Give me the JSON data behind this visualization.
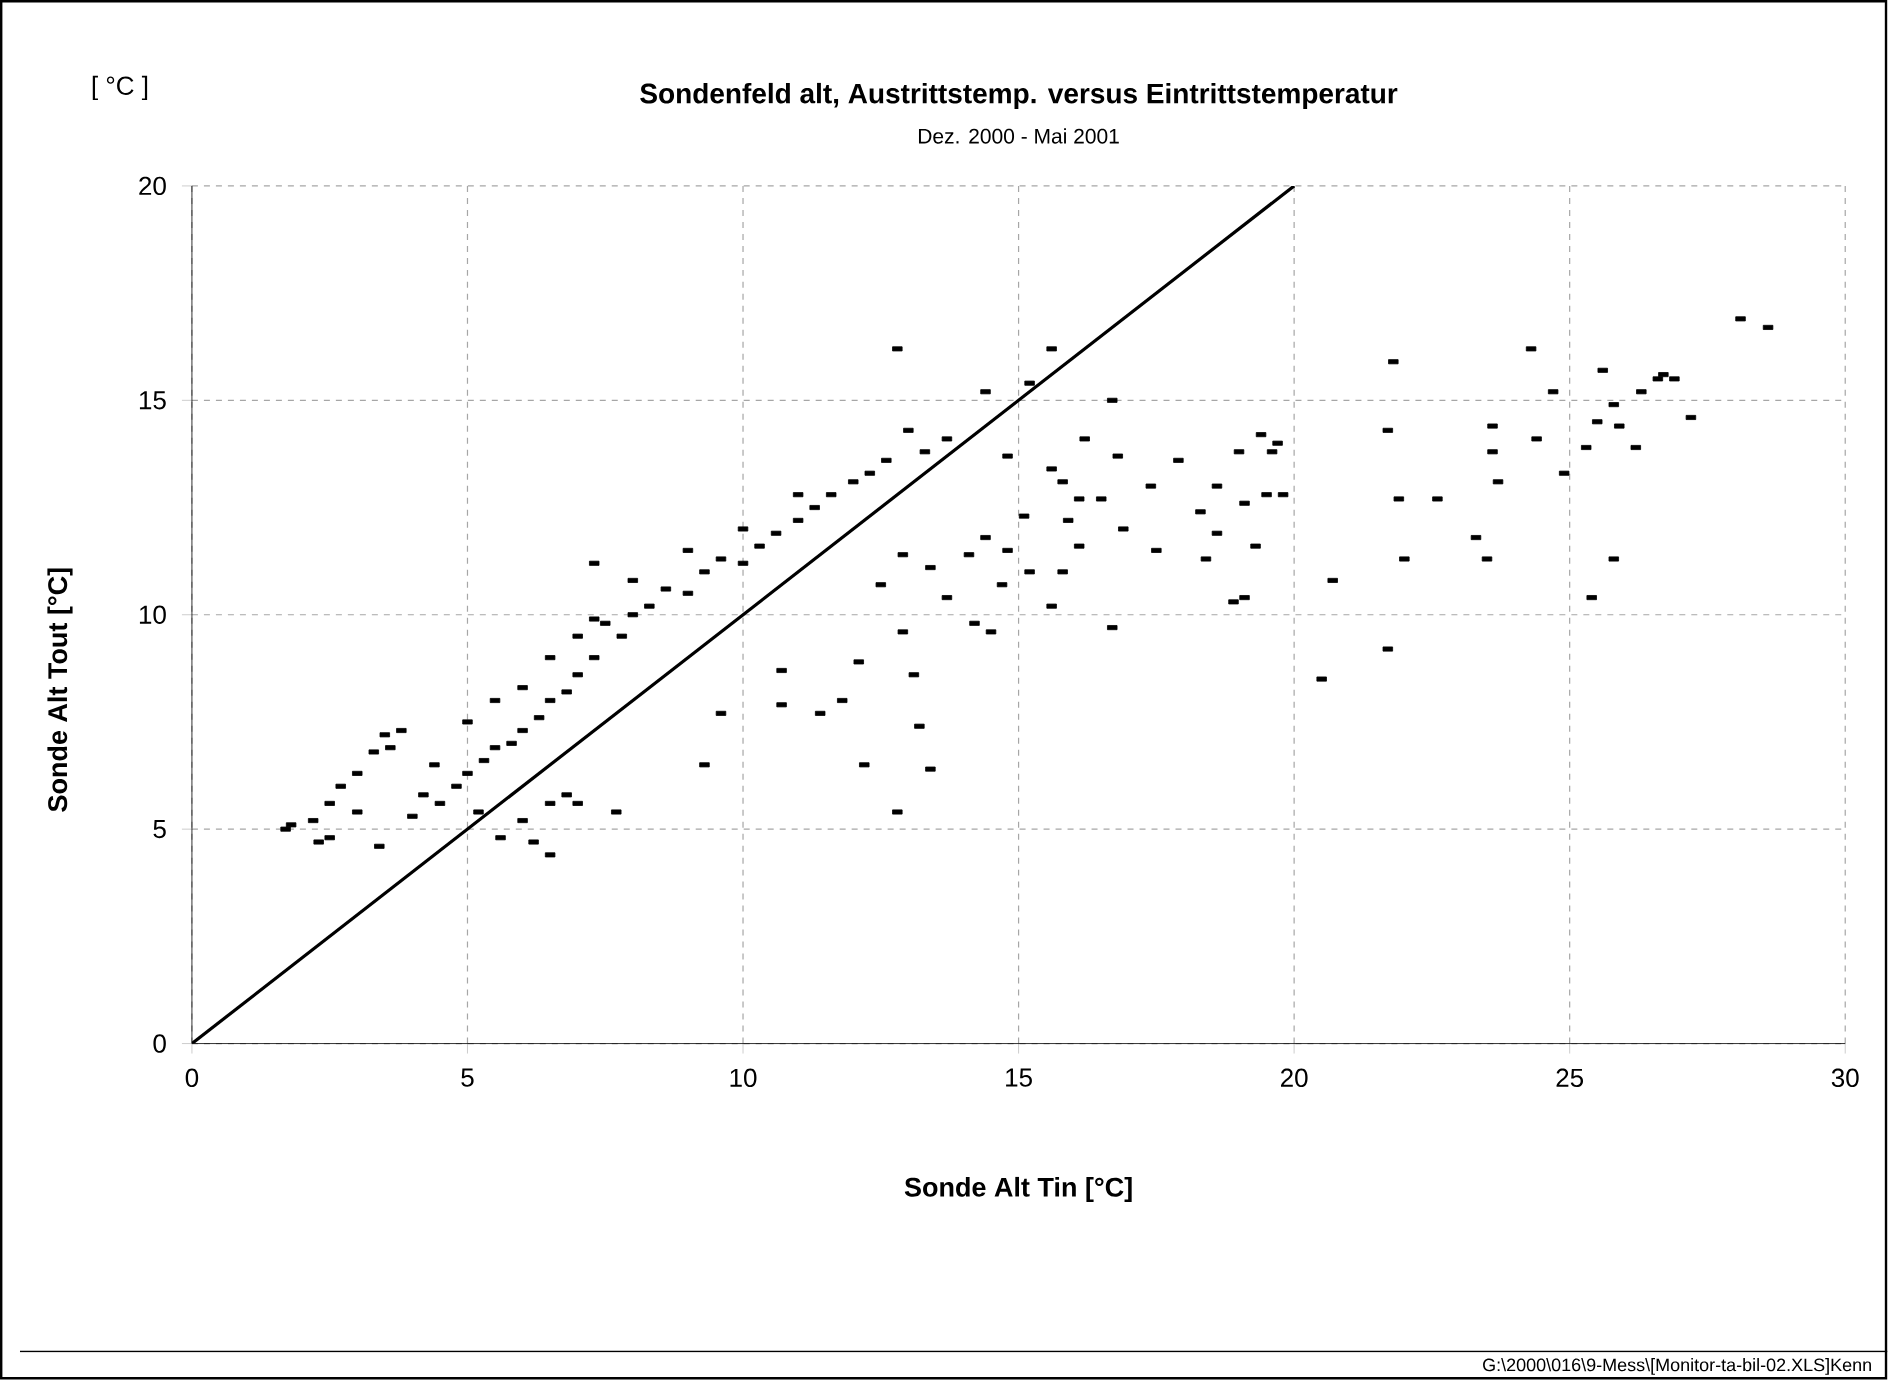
{
  "chart_data": {
    "type": "scatter",
    "title": "Sondenfeld alt, Austrittstemp. versus Eintrittstemperatur",
    "subtitle": "Dez. 2000 - Mai 2001",
    "xlabel": "Sonde Alt Tin  [°C]",
    "ylabel": "Sonde Alt Tout  [°C]",
    "annotations": [
      "[ °C ]",
      "G:\\2000\\016\\9-Mess\\[Monitor-ta-bil-02.XLS]Kenn"
    ],
    "xlim": [
      0,
      30
    ],
    "ylim": [
      0,
      20
    ],
    "xticks": [
      0,
      5,
      10,
      15,
      20,
      25,
      30
    ],
    "yticks": [
      0,
      5,
      10,
      15,
      20
    ],
    "grid": true,
    "series": [
      {
        "type": "scatter",
        "marker": "square",
        "color": "#000000",
        "x": [
          1.7,
          1.8,
          2.2,
          2.3,
          2.5,
          2.5,
          2.7,
          3.0,
          3.0,
          3.3,
          3.4,
          3.5,
          3.6,
          3.8,
          4.0,
          4.2,
          4.4,
          4.5,
          4.8,
          5.0,
          5.0,
          5.2,
          5.3,
          5.5,
          5.5,
          5.6,
          5.8,
          6.0,
          6.0,
          6.0,
          6.2,
          6.3,
          6.5,
          6.5,
          6.5,
          6.5,
          6.8,
          6.8,
          7.0,
          7.0,
          7.0,
          7.3,
          7.3,
          7.3,
          7.5,
          7.7,
          7.8,
          8.0,
          8.0,
          8.3,
          8.6,
          9.0,
          9.0,
          9.3,
          9.3,
          9.6,
          9.6,
          10.0,
          10.0,
          10.3,
          10.6,
          10.7,
          10.7,
          11.0,
          11.0,
          11.3,
          11.4,
          11.6,
          11.8,
          12.0,
          12.1,
          12.2,
          12.3,
          12.5,
          12.6,
          12.8,
          12.8,
          12.9,
          12.9,
          13.0,
          13.1,
          13.2,
          13.3,
          13.4,
          13.4,
          13.7,
          13.7,
          14.1,
          14.2,
          14.4,
          14.4,
          14.5,
          14.7,
          14.8,
          14.8,
          15.1,
          15.2,
          15.2,
          15.6,
          15.6,
          15.6,
          15.8,
          15.8,
          15.9,
          16.1,
          16.1,
          16.2,
          16.5,
          16.7,
          16.7,
          16.8,
          16.9,
          17.4,
          17.5,
          17.9,
          18.3,
          18.4,
          18.6,
          18.6,
          18.9,
          19.0,
          19.1,
          19.1,
          19.3,
          19.4,
          19.5,
          19.6,
          19.7,
          19.8,
          20.5,
          20.7,
          21.7,
          21.7,
          21.8,
          21.9,
          22.0,
          22.6,
          23.3,
          23.5,
          23.6,
          23.6,
          23.7,
          24.3,
          24.4,
          24.7,
          24.9,
          25.3,
          25.4,
          25.5,
          25.6,
          25.8,
          25.8,
          25.9,
          26.2,
          26.3,
          26.6,
          26.7,
          26.9,
          27.2,
          28.1,
          28.6
        ],
        "values": [
          5.0,
          5.1,
          5.2,
          4.7,
          5.6,
          4.8,
          6.0,
          5.4,
          6.3,
          6.8,
          4.6,
          7.2,
          6.9,
          7.3,
          5.3,
          5.8,
          6.5,
          5.6,
          6.0,
          6.3,
          7.5,
          5.4,
          6.6,
          6.9,
          8.0,
          4.8,
          7.0,
          7.3,
          8.3,
          5.2,
          4.7,
          7.6,
          8.0,
          9.0,
          5.6,
          4.4,
          8.2,
          5.8,
          8.6,
          9.5,
          5.6,
          9.0,
          11.2,
          9.9,
          9.8,
          5.4,
          9.5,
          10.0,
          10.8,
          10.2,
          10.6,
          10.5,
          11.5,
          11.0,
          6.5,
          11.3,
          7.7,
          11.2,
          12.0,
          11.6,
          11.9,
          8.7,
          7.9,
          12.2,
          12.8,
          12.5,
          7.7,
          12.8,
          8.0,
          13.1,
          8.9,
          6.5,
          13.3,
          10.7,
          13.6,
          16.2,
          5.4,
          11.4,
          9.6,
          14.3,
          8.6,
          7.4,
          13.8,
          6.4,
          11.1,
          10.4,
          14.1,
          11.4,
          9.8,
          11.8,
          15.2,
          9.6,
          10.7,
          11.5,
          13.7,
          12.3,
          11.0,
          15.4,
          10.2,
          13.4,
          16.2,
          11.0,
          13.1,
          12.2,
          11.6,
          12.7,
          14.1,
          12.7,
          9.7,
          15.0,
          13.7,
          12.0,
          13.0,
          11.5,
          13.6,
          12.4,
          11.3,
          11.9,
          13.0,
          10.3,
          13.8,
          12.6,
          10.4,
          11.6,
          14.2,
          12.8,
          13.8,
          14.0,
          12.8,
          8.5,
          10.8,
          9.2,
          14.3,
          15.9,
          12.7,
          11.3,
          12.7,
          11.8,
          11.3,
          14.4,
          13.8,
          13.1,
          16.2,
          14.1,
          15.2,
          13.3,
          13.9,
          10.4,
          14.5,
          15.7,
          14.9,
          11.3,
          14.4,
          13.9,
          15.2,
          15.5,
          15.6,
          15.5,
          14.6,
          16.9,
          16.7
        ]
      },
      {
        "type": "line",
        "marker": "none",
        "line_style": "solid",
        "color": "#000000",
        "x": [
          0,
          20
        ],
        "values": [
          0,
          20
        ]
      }
    ]
  }
}
